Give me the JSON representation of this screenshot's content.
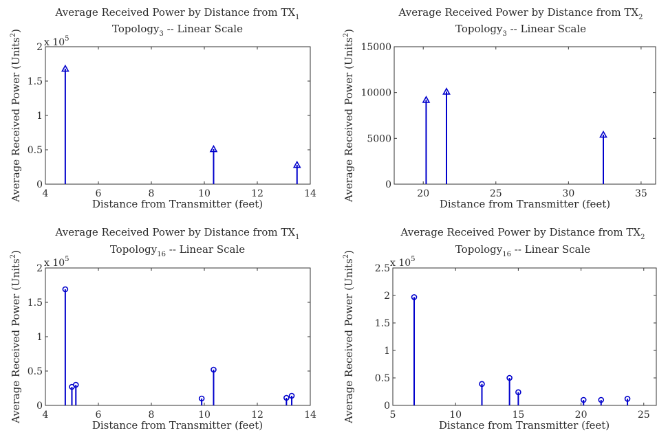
{
  "chart_data": [
    {
      "type": "stem",
      "title_pre": "Average Received Power by Distance from TX",
      "title_sub": "1",
      "topology_pre": "Topology",
      "topology_sub": "3",
      "topology_post": " -- Linear Scale",
      "xlabel": "Distance from Transmitter (feet)",
      "ylabel": "Average Received Power (Units",
      "ylabel_sup": "2",
      "ylabel_post": ")",
      "exponent_label": "x 10",
      "exponent_sup": "5",
      "xlim": [
        4,
        14
      ],
      "ylim": [
        0,
        2
      ],
      "xticks": [
        4,
        6,
        8,
        10,
        12,
        14
      ],
      "xtick_labels": [
        "4",
        "6",
        "8",
        "10",
        "12",
        "14"
      ],
      "yticks": [
        0,
        0.5,
        1,
        1.5,
        2
      ],
      "ytick_labels": [
        "0",
        "0.5",
        "1",
        "1.5",
        "2"
      ],
      "marker": "triangle",
      "x": [
        4.75,
        10.35,
        13.5
      ],
      "y": [
        1.68,
        0.51,
        0.28
      ]
    },
    {
      "type": "stem",
      "title_pre": "Average Received Power by Distance from TX",
      "title_sub": "2",
      "topology_pre": "Topology",
      "topology_sub": "3",
      "topology_post": " -- Linear Scale",
      "xlabel": "Distance from Transmitter (feet)",
      "ylabel": "Average Received Power (Units",
      "ylabel_sup": "2",
      "ylabel_post": ")",
      "exponent_label": "",
      "exponent_sup": "",
      "xlim": [
        18,
        36
      ],
      "ylim": [
        0,
        15000
      ],
      "xticks": [
        20,
        25,
        30,
        35
      ],
      "xtick_labels": [
        "20",
        "25",
        "30",
        "35"
      ],
      "yticks": [
        0,
        5000,
        10000,
        15000
      ],
      "ytick_labels": [
        "0",
        "5000",
        "10000",
        "15000"
      ],
      "marker": "triangle",
      "x": [
        20.2,
        21.6,
        32.4
      ],
      "y": [
        9200,
        10100,
        5400
      ]
    },
    {
      "type": "stem",
      "title_pre": "Average Received Power by Distance from TX",
      "title_sub": "1",
      "topology_pre": "Topology",
      "topology_sub": "16",
      "topology_post": " -- Linear Scale",
      "xlabel": "Distance from Transmitter (feet)",
      "ylabel": "Average Received Power (Units",
      "ylabel_sup": "2",
      "ylabel_post": ")",
      "exponent_label": "x 10",
      "exponent_sup": "5",
      "xlim": [
        4,
        14
      ],
      "ylim": [
        0,
        2
      ],
      "xticks": [
        4,
        6,
        8,
        10,
        12,
        14
      ],
      "xtick_labels": [
        "4",
        "6",
        "8",
        "10",
        "12",
        "14"
      ],
      "yticks": [
        0,
        0.5,
        1,
        1.5,
        2
      ],
      "ytick_labels": [
        "0",
        "0.5",
        "1",
        "1.5",
        "2"
      ],
      "marker": "circle",
      "x": [
        4.75,
        5.0,
        5.15,
        9.9,
        10.35,
        13.1,
        13.3
      ],
      "y": [
        1.69,
        0.27,
        0.3,
        0.1,
        0.52,
        0.11,
        0.14
      ]
    },
    {
      "type": "stem",
      "title_pre": "Average Received Power by Distance from TX",
      "title_sub": "2",
      "topology_pre": "Topology",
      "topology_sub": "16",
      "topology_post": " -- Linear Scale",
      "xlabel": "Distance from Transmitter (feet)",
      "ylabel": "Average Received Power (Units",
      "ylabel_sup": "2",
      "ylabel_post": ")",
      "exponent_label": "x 10",
      "exponent_sup": "5",
      "xlim": [
        5,
        26
      ],
      "ylim": [
        0,
        2.5
      ],
      "xticks": [
        5,
        10,
        15,
        20,
        25
      ],
      "xtick_labels": [
        "5",
        "10",
        "15",
        "20",
        "25"
      ],
      "yticks": [
        0,
        0.5,
        1,
        1.5,
        2,
        2.5
      ],
      "ytick_labels": [
        "0",
        "0.5",
        "1",
        "1.5",
        "2",
        "2.5"
      ],
      "marker": "circle",
      "x": [
        6.7,
        12.1,
        14.3,
        15.0,
        20.2,
        21.6,
        23.7
      ],
      "y": [
        1.97,
        0.39,
        0.5,
        0.24,
        0.1,
        0.1,
        0.12
      ]
    }
  ],
  "colors": {
    "stem": "#0000cc",
    "axes": "#333333",
    "text": "#2b2b2b"
  }
}
